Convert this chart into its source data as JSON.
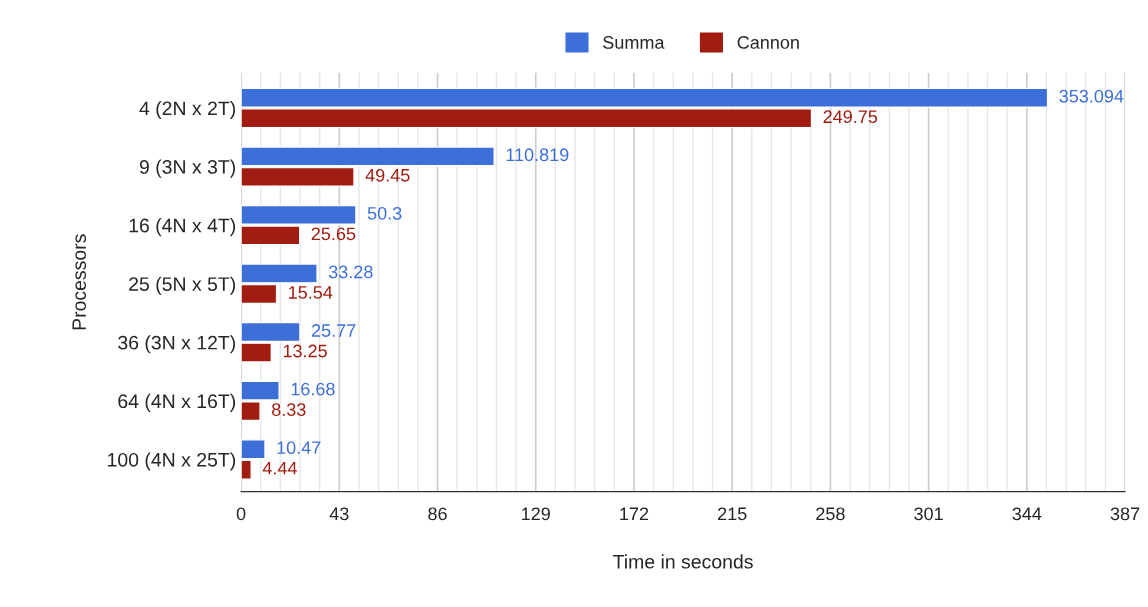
{
  "chart_data": {
    "type": "bar",
    "orientation": "horizontal",
    "xlabel": "Time in seconds",
    "ylabel": "Processors",
    "categories": [
      "4 (2N x 2T)",
      "9 (3N x 3T)",
      "16 (4N x 4T)",
      "25 (5N x 5T)",
      "36 (3N x 12T)",
      "64 (4N x 16T)",
      "100 (4N x 25T)"
    ],
    "series": [
      {
        "name": "Summa",
        "color": "#3c6fd8",
        "values": [
          353.094,
          110.819,
          50.3,
          33.28,
          25.77,
          16.68,
          10.47
        ]
      },
      {
        "name": "Cannon",
        "color": "#a11d12",
        "values": [
          249.75,
          49.45,
          25.65,
          15.54,
          13.25,
          8.33,
          4.44
        ]
      }
    ],
    "xlim": [
      0,
      387
    ],
    "xticks": [
      0,
      43,
      86,
      129,
      172,
      215,
      258,
      301,
      344,
      387
    ],
    "grid": "x",
    "legend": "top",
    "data_labels": true
  }
}
